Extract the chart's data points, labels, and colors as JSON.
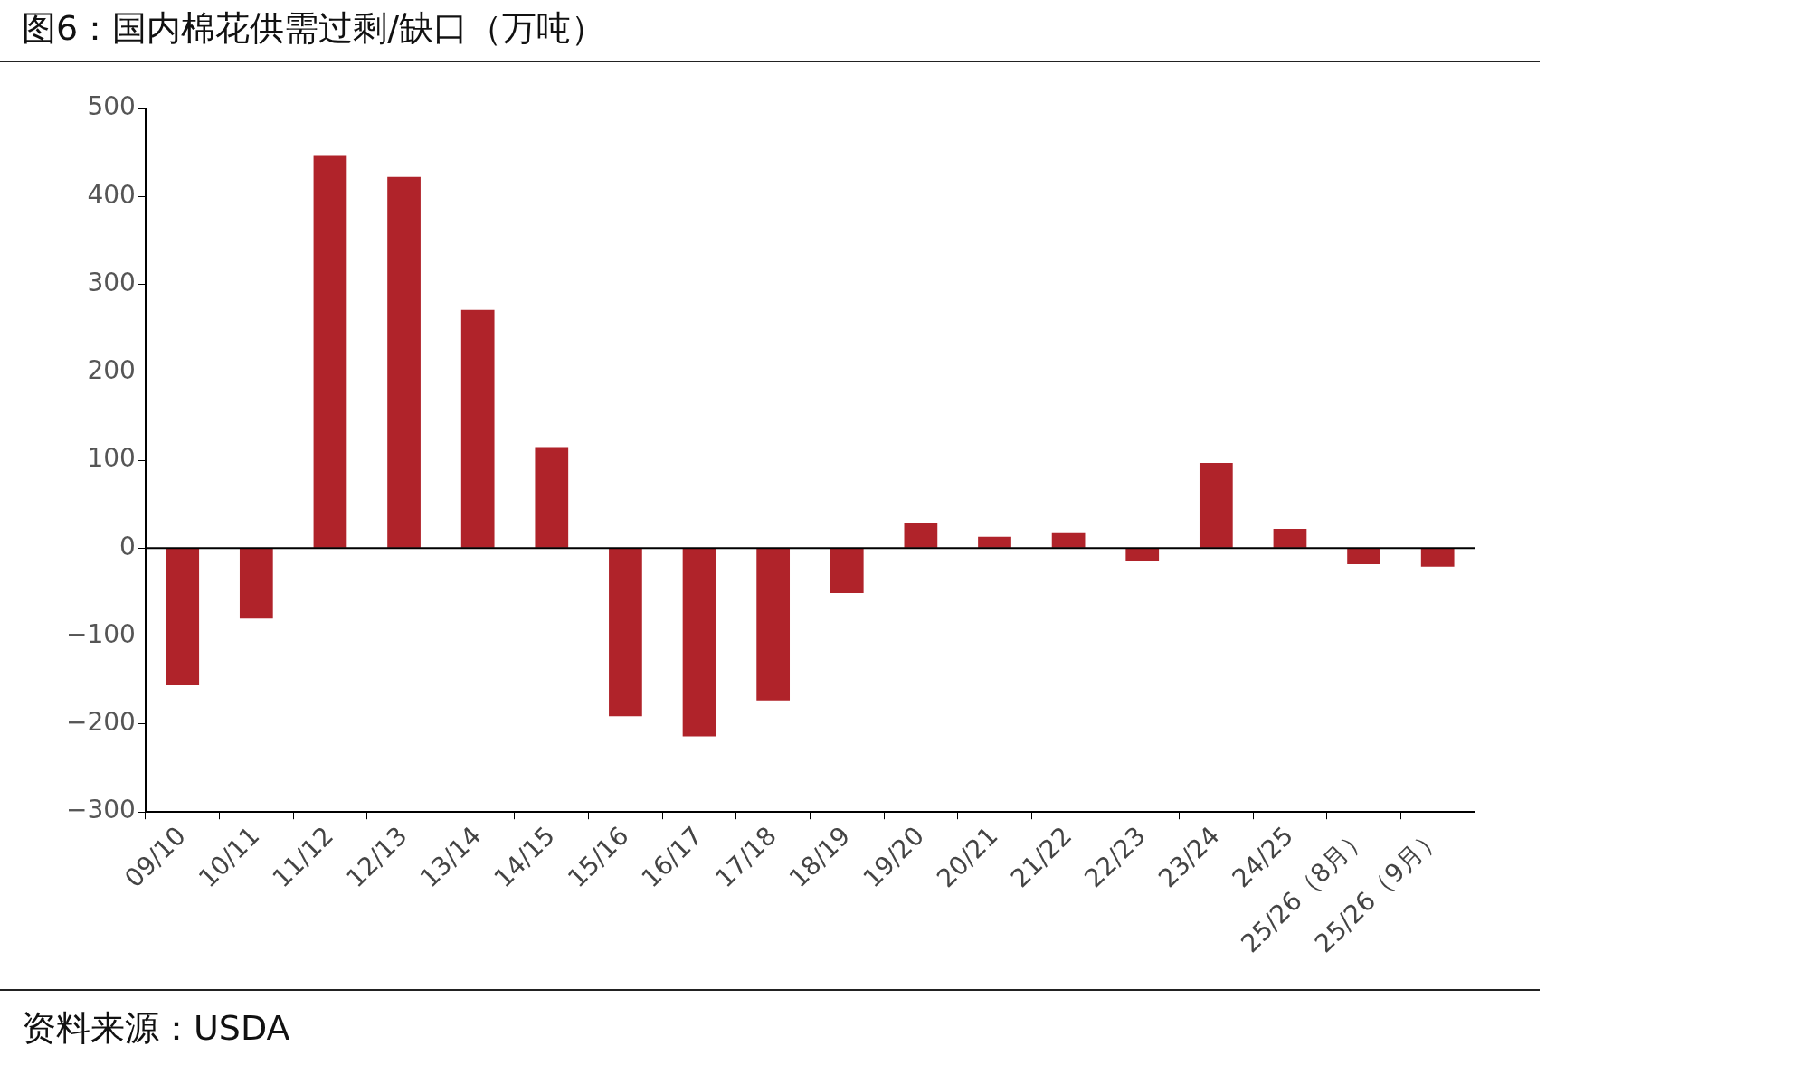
{
  "chart_data": {
    "type": "bar",
    "title": "图6：国内棉花供需过剩/缺口（万吨）",
    "categories": [
      "09/10",
      "10/11",
      "11/12",
      "12/13",
      "13/14",
      "14/15",
      "15/16",
      "16/17",
      "17/18",
      "18/19",
      "19/20",
      "20/21",
      "21/22",
      "22/23",
      "23/24",
      "24/25",
      "25/26（8月）",
      "25/26（9月）"
    ],
    "values": [
      -156,
      -80,
      447,
      422,
      271,
      115,
      -191,
      -214,
      -173,
      -51,
      29,
      13,
      18,
      -14,
      97,
      22,
      -18,
      -21
    ],
    "color": "#b0232a",
    "ylim": [
      -300,
      500
    ],
    "yticks": [
      {
        "value": -300,
        "label": "−300"
      },
      {
        "value": -200,
        "label": "−200"
      },
      {
        "value": -100,
        "label": "−100"
      },
      0,
      100,
      200,
      300,
      400,
      500
    ],
    "grid": false,
    "legend": false,
    "ref_lines": [
      {
        "axis": "y",
        "value": 0,
        "color": "#000000"
      }
    ],
    "annotations": [
      "资料来源：USDA"
    ]
  }
}
